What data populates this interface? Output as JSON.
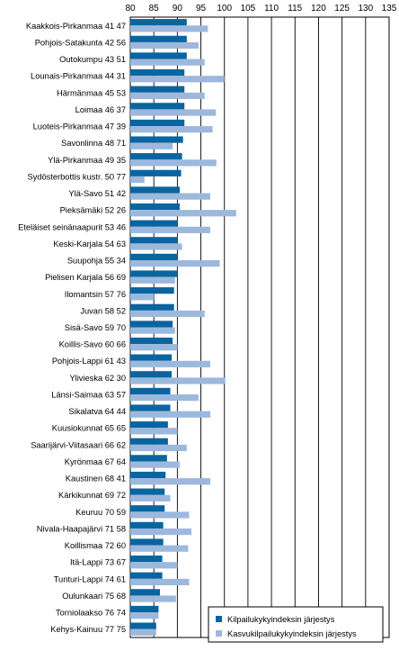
{
  "chart_data": {
    "type": "bar",
    "orientation": "horizontal",
    "x_ticks": [
      80,
      85,
      90,
      95,
      100,
      105,
      110,
      115,
      120,
      125,
      130,
      135
    ],
    "xlim": [
      80,
      135
    ],
    "grid": "vertical",
    "legend_position": "bottom-right",
    "categories": [
      "Kaakkois-Pirkanmaa 41  47",
      "Pohjois-Satakunta 42  56",
      "Outokumpu 43  51",
      "Lounais-Pirkanmaa 44  31",
      "Härmänmaa 45  53",
      "Loimaa 46  37",
      "Luoteis-Pirkanmaa 47  39",
      "Savonlinna 48  71",
      "Ylä-Pirkanmaa 49  35",
      "Sydösterbottis kustr. 50  77",
      "Ylä-Savo 51  42",
      "Pieksämäki 52  26",
      "Eteläiset seinänaapurit 53  46",
      "Keski-Karjala 54  63",
      "Suupohja 55  34",
      "Pielisen Karjala 56  69",
      "Ilomantsin 57  76",
      "Juvan 58  52",
      "Sisä-Savo 59  70",
      "Koillis-Savo 60  66",
      "Pohjois-Lappi 61  43",
      "Ylivieska 62  30",
      "Länsi-Saimaa 63  57",
      "Sikalatva 64  44",
      "Kuusiokunnat 65  65",
      "Saarijärvi-Viitasaari 66  62",
      "Kyrönmaa 67  64",
      "Kaustinen 68  41",
      "Kärkikunnat 69  72",
      "Keuruu 70  59",
      "Nivala-Haapajärvi 71  58",
      "Koillismaa 72  60",
      "Itä-Lappi 73  67",
      "Tunturi-Lappi 74  61",
      "Oulunkaari 75  68",
      "Torniolaakso 76  74",
      "Kehys-Kainuu 77  75"
    ],
    "series": [
      {
        "name": "Kilpailukykyindeksin järjestys",
        "color": "#0a64a0",
        "values": [
          92.0,
          92.0,
          92.0,
          91.5,
          91.5,
          91.5,
          91.5,
          91.2,
          91.0,
          90.8,
          90.5,
          90.5,
          90.0,
          90.0,
          90.0,
          90.0,
          89.3,
          89.3,
          89.0,
          89.0,
          88.8,
          88.8,
          88.5,
          88.5,
          88.0,
          88.0,
          87.8,
          87.5,
          87.3,
          87.3,
          87.0,
          87.0,
          86.8,
          86.8,
          86.3,
          86.0,
          85.5
        ]
      },
      {
        "name": "Kasvukilpailukykyindeksin järjestys",
        "color": "#9db8dd",
        "values": [
          96.5,
          94.5,
          95.8,
          100.0,
          95.8,
          98.2,
          97.5,
          89.0,
          98.3,
          83.0,
          97.0,
          102.5,
          97.0,
          91.0,
          99.0,
          89.5,
          85.0,
          95.8,
          89.5,
          90.0,
          97.0,
          100.2,
          94.5,
          97.0,
          90.0,
          92.0,
          90.5,
          97.0,
          88.5,
          92.5,
          93.0,
          92.3,
          90.0,
          92.5,
          89.7,
          86.0,
          85.5
        ]
      }
    ]
  }
}
